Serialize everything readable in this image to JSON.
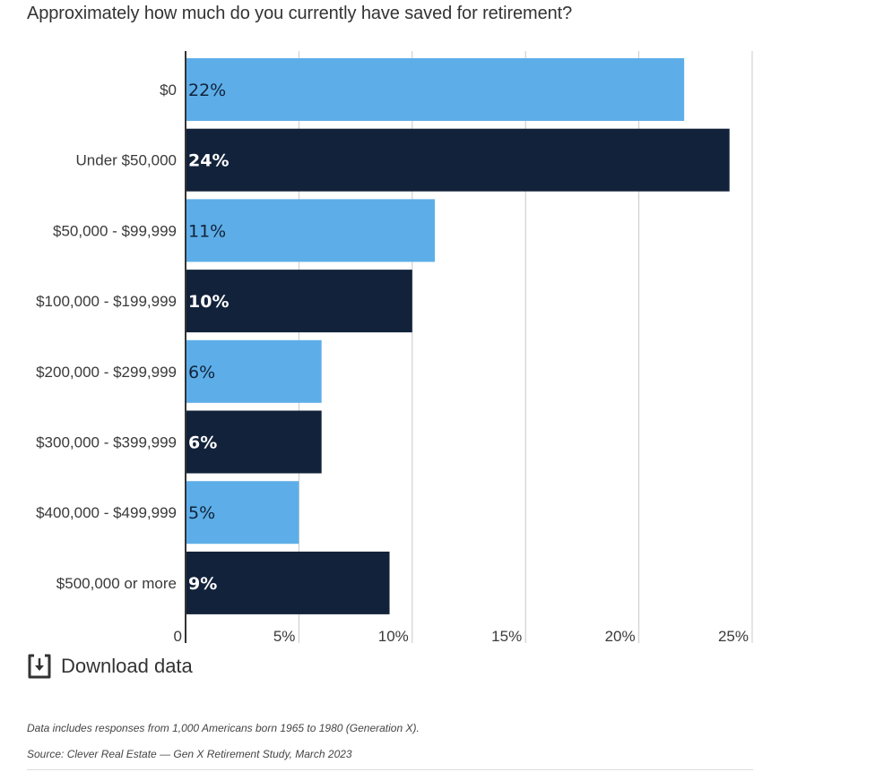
{
  "title": "Approximately how much do you currently have saved for retirement?",
  "chart_data": {
    "type": "bar",
    "orientation": "horizontal",
    "title": "Approximately how much do you currently have saved for retirement?",
    "xlabel": "",
    "ylabel": "",
    "xlim": [
      0,
      25
    ],
    "grid": true,
    "x_ticks": [
      0,
      5,
      10,
      15,
      20,
      25
    ],
    "x_tick_labels": [
      "0",
      "5%",
      "10%",
      "15%",
      "20%",
      "25%"
    ],
    "categories": [
      "$0",
      "Under $50,000",
      "$50,000 - $99,999",
      "$100,000 - $199,999",
      "$200,000 - $299,999",
      "$300,000 - $399,999",
      "$400,000 - $499,999",
      "$500,000 or more"
    ],
    "values": [
      22,
      24,
      11,
      10,
      6,
      6,
      5,
      9
    ],
    "data_labels": [
      "22%",
      "24%",
      "11%",
      "10%",
      "6%",
      "6%",
      "5%",
      "9%"
    ],
    "colors": [
      "#5DAEE8",
      "#12223A",
      "#5DAEE8",
      "#12223A",
      "#5DAEE8",
      "#12223A",
      "#5DAEE8",
      "#12223A"
    ],
    "label_colors": [
      "#12223A",
      "#ffffff",
      "#12223A",
      "#ffffff",
      "#12223A",
      "#ffffff",
      "#12223A",
      "#ffffff"
    ],
    "legend": "none"
  },
  "download": {
    "label": "Download data",
    "icon": "download-icon"
  },
  "notes": {
    "description": "Data includes responses from 1,000 Americans born 1965 to 1980 (Generation X).",
    "source": "Source: Clever Real Estate — Gen X Retirement Study, March 2023"
  }
}
